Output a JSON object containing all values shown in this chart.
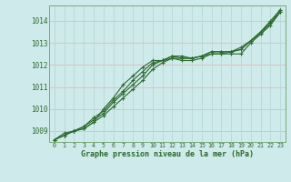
{
  "x": [
    0,
    1,
    2,
    3,
    4,
    5,
    6,
    7,
    8,
    9,
    10,
    11,
    12,
    13,
    14,
    15,
    16,
    17,
    18,
    19,
    20,
    21,
    22,
    23
  ],
  "series": [
    [
      1008.6,
      1008.8,
      1009.0,
      1009.1,
      1009.4,
      1009.7,
      1010.1,
      1010.5,
      1010.9,
      1011.3,
      1011.8,
      1012.1,
      1012.3,
      1012.3,
      1012.3,
      1012.4,
      1012.5,
      1012.5,
      1012.6,
      1012.7,
      1013.1,
      1013.5,
      1014.0,
      1014.5
    ],
    [
      1008.6,
      1008.9,
      1009.0,
      1009.2,
      1009.5,
      1009.8,
      1010.3,
      1010.7,
      1011.1,
      1011.5,
      1012.0,
      1012.2,
      1012.4,
      1012.4,
      1012.3,
      1012.4,
      1012.6,
      1012.6,
      1012.6,
      1012.7,
      1013.1,
      1013.4,
      1013.9,
      1014.4
    ],
    [
      1008.6,
      1008.8,
      1009.0,
      1009.1,
      1009.4,
      1010.0,
      1010.5,
      1011.1,
      1011.5,
      1011.9,
      1012.2,
      1012.2,
      1012.3,
      1012.2,
      1012.2,
      1012.3,
      1012.5,
      1012.5,
      1012.5,
      1012.5,
      1013.0,
      1013.4,
      1013.8,
      1014.4
    ],
    [
      1008.6,
      1008.8,
      1009.0,
      1009.2,
      1009.6,
      1009.9,
      1010.4,
      1010.8,
      1011.3,
      1011.7,
      1012.1,
      1012.2,
      1012.4,
      1012.3,
      1012.3,
      1012.4,
      1012.6,
      1012.6,
      1012.6,
      1012.8,
      1013.1,
      1013.5,
      1013.9,
      1014.5
    ]
  ],
  "ylim": [
    1008.5,
    1014.7
  ],
  "yticks": [
    1009,
    1010,
    1011,
    1012,
    1013,
    1014
  ],
  "xlim": [
    -0.5,
    23.5
  ],
  "line_color": "#2d6a2d",
  "marker": "+",
  "markersize": 3.5,
  "linewidth": 0.8,
  "bg_color": "#ceeaea",
  "grid_color": "#b8d8d8",
  "grid_color_h": "#e8b8b8",
  "xlabel": "Graphe pression niveau de la mer (hPa)",
  "xlabel_color": "#2d6a2d",
  "tick_color": "#2d6a2d"
}
